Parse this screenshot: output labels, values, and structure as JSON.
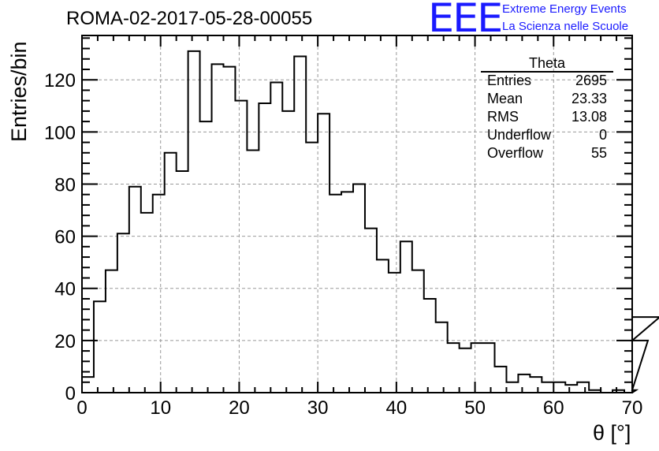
{
  "page": {
    "title": "ROMA-02-2017-05-28-00055",
    "logo": {
      "mark": "EEE",
      "line1": "Extreme Energy Events",
      "line2": "La Scienza nelle Scuole",
      "color": "#1a1aff"
    }
  },
  "stats": {
    "title": "Theta",
    "rows": [
      {
        "key": "Entries",
        "value": "2695"
      },
      {
        "key": "Mean",
        "value": "23.33"
      },
      {
        "key": "RMS",
        "value": "13.08"
      },
      {
        "key": "Underflow",
        "value": "0"
      },
      {
        "key": "Overflow",
        "value": "55"
      }
    ]
  },
  "chart_data": {
    "type": "bar",
    "style": "step-histogram",
    "title": "ROMA-02-2017-05-28-00055",
    "xlabel": "θ [°]",
    "ylabel": "Entries/bin",
    "xlim": [
      0,
      70
    ],
    "ylim": [
      0,
      137
    ],
    "bin_width": 1.5,
    "x_ticks": [
      0,
      10,
      20,
      30,
      40,
      50,
      60,
      70
    ],
    "y_ticks": [
      0,
      20,
      40,
      60,
      80,
      100,
      120
    ],
    "grid": true,
    "legend": "none",
    "bin_edges_start": 0,
    "values": [
      6,
      35,
      47,
      61,
      79,
      69,
      76,
      92,
      85,
      131,
      104,
      126,
      125,
      112,
      93,
      111,
      119,
      108,
      129,
      96,
      107,
      76,
      77,
      80,
      63,
      51,
      46,
      58,
      47,
      36,
      27,
      19,
      17,
      19,
      19,
      10,
      4,
      7,
      6,
      4,
      4,
      3,
      4,
      1,
      0,
      1,
      0,
      1,
      20,
      29
    ]
  }
}
